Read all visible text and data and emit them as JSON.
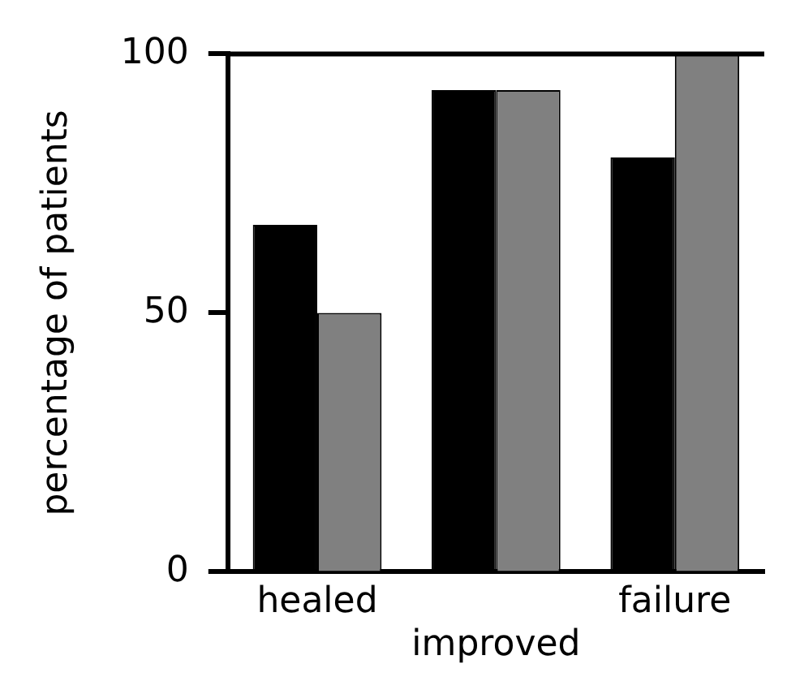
{
  "chart_data": {
    "type": "bar",
    "ylabel": "percentage of patients",
    "categories": [
      "healed",
      "improved",
      "failure"
    ],
    "series": [
      {
        "color": "#000000",
        "values": [
          67,
          93,
          80
        ]
      },
      {
        "color": "#808080",
        "values": [
          50,
          93,
          100
        ]
      }
    ],
    "ylim": [
      0,
      100
    ],
    "yticks": [
      0,
      50,
      100
    ],
    "grid": false,
    "legend": false
  }
}
